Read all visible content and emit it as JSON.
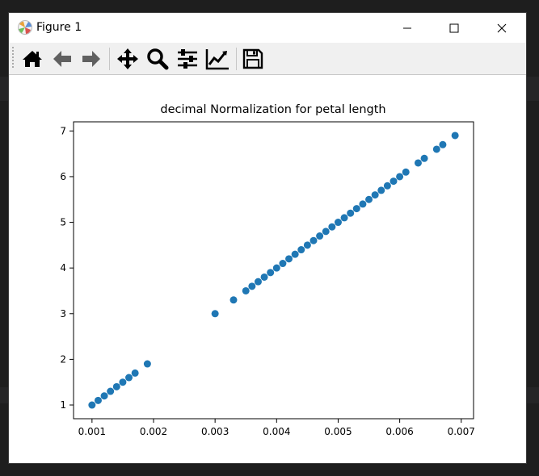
{
  "window": {
    "title": "Figure 1"
  },
  "toolbar": {
    "buttons": [
      {
        "name": "home-icon",
        "label": "Home"
      },
      {
        "name": "back-arrow-icon",
        "label": "Back"
      },
      {
        "name": "forward-arrow-icon",
        "label": "Forward"
      },
      {
        "name": "pan-icon",
        "label": "Pan"
      },
      {
        "name": "zoom-icon",
        "label": "Zoom"
      },
      {
        "name": "subplots-icon",
        "label": "Subplots"
      },
      {
        "name": "axes-edit-icon",
        "label": "Customize"
      },
      {
        "name": "save-icon",
        "label": "Save"
      }
    ]
  },
  "colors": {
    "point": "#1f77b4",
    "toolbar_bg": "#f0f0f0",
    "titlebar_bg": "#ffffff"
  },
  "chart_data": {
    "type": "scatter",
    "title": "decimal Normalization for petal length",
    "xlabel": "",
    "ylabel": "",
    "xlim": [
      0.0007,
      0.0072
    ],
    "ylim": [
      0.7,
      7.2
    ],
    "xticks": [
      "0.001",
      "0.002",
      "0.003",
      "0.004",
      "0.005",
      "0.006",
      "0.007"
    ],
    "yticks": [
      "1",
      "2",
      "3",
      "4",
      "5",
      "6",
      "7"
    ],
    "grid": false,
    "points": [
      [
        0.001,
        1.0
      ],
      [
        0.0011,
        1.1
      ],
      [
        0.0012,
        1.2
      ],
      [
        0.0013,
        1.3
      ],
      [
        0.0014,
        1.4
      ],
      [
        0.0015,
        1.5
      ],
      [
        0.0016,
        1.6
      ],
      [
        0.0017,
        1.7
      ],
      [
        0.0019,
        1.9
      ],
      [
        0.003,
        3.0
      ],
      [
        0.0033,
        3.3
      ],
      [
        0.0035,
        3.5
      ],
      [
        0.0036,
        3.6
      ],
      [
        0.0037,
        3.7
      ],
      [
        0.0038,
        3.8
      ],
      [
        0.0039,
        3.9
      ],
      [
        0.004,
        4.0
      ],
      [
        0.0041,
        4.1
      ],
      [
        0.0042,
        4.2
      ],
      [
        0.0043,
        4.3
      ],
      [
        0.0044,
        4.4
      ],
      [
        0.0045,
        4.5
      ],
      [
        0.0046,
        4.6
      ],
      [
        0.0047,
        4.7
      ],
      [
        0.0048,
        4.8
      ],
      [
        0.0049,
        4.9
      ],
      [
        0.005,
        5.0
      ],
      [
        0.0051,
        5.1
      ],
      [
        0.0052,
        5.2
      ],
      [
        0.0053,
        5.3
      ],
      [
        0.0054,
        5.4
      ],
      [
        0.0055,
        5.5
      ],
      [
        0.0056,
        5.6
      ],
      [
        0.0057,
        5.7
      ],
      [
        0.0058,
        5.8
      ],
      [
        0.0059,
        5.9
      ],
      [
        0.006,
        6.0
      ],
      [
        0.0061,
        6.1
      ],
      [
        0.0063,
        6.3
      ],
      [
        0.0064,
        6.4
      ],
      [
        0.0066,
        6.6
      ],
      [
        0.0067,
        6.7
      ],
      [
        0.0069,
        6.9
      ]
    ]
  }
}
